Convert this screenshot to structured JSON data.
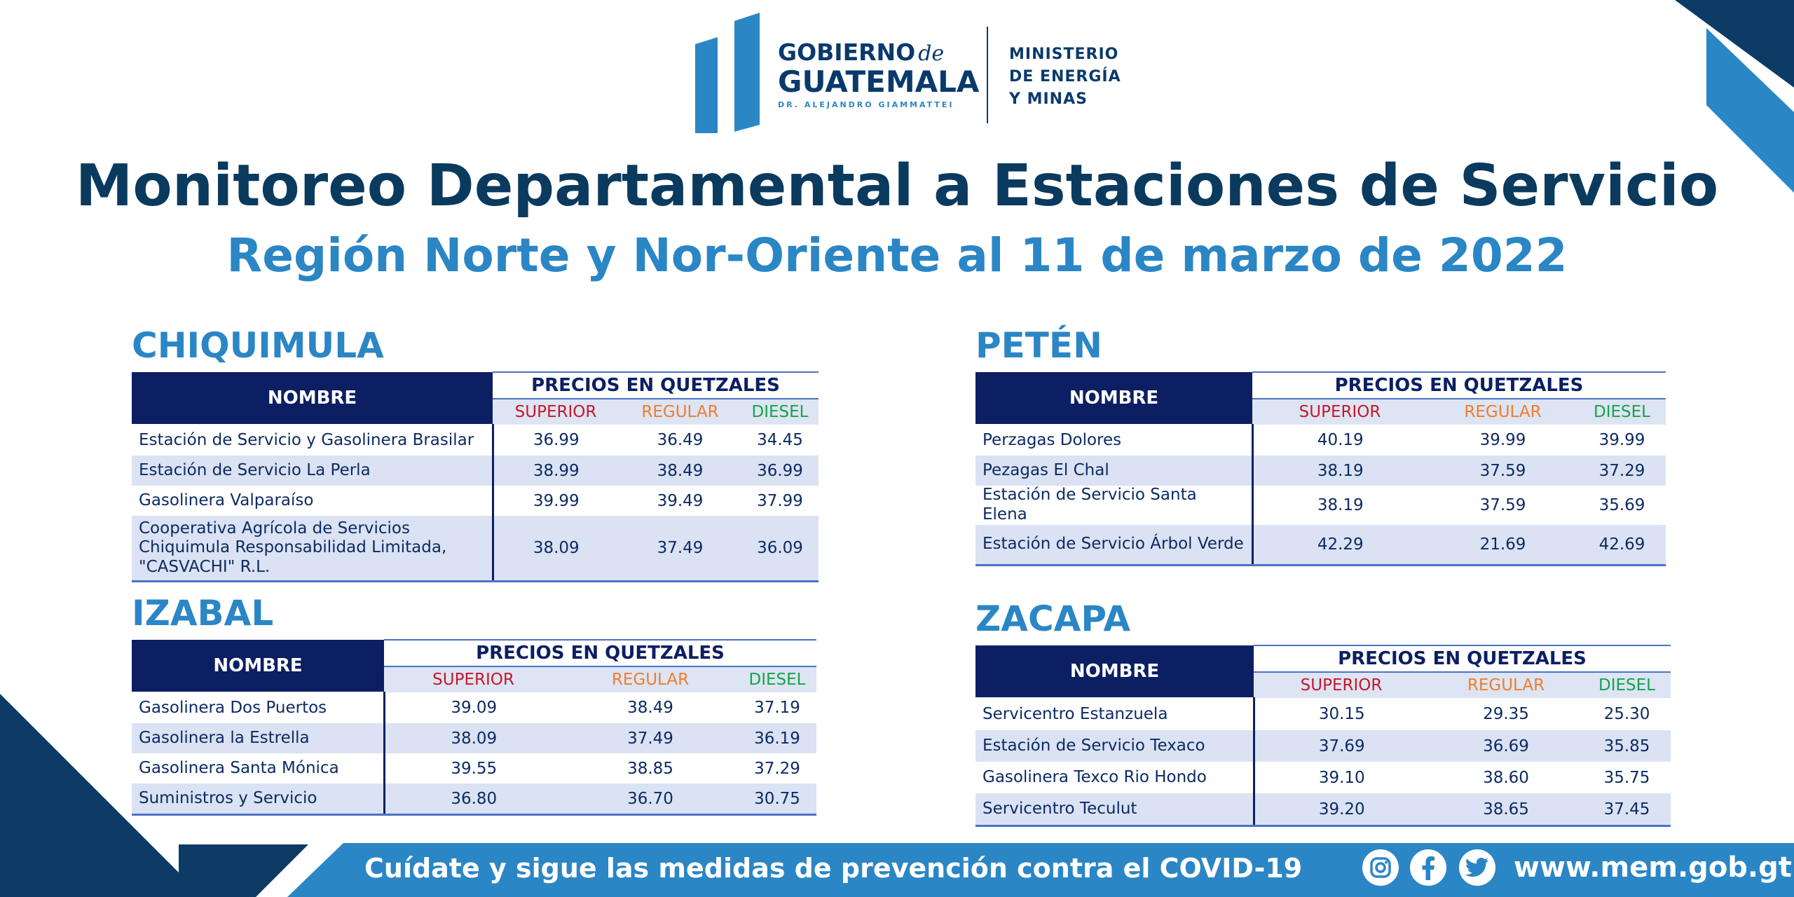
{
  "header": {
    "logo_line1": "GOBIERNO",
    "logo_de": "de",
    "logo_line2": "GUATEMALA",
    "logo_line3": "DR. ALEJANDRO GIAMMATTEI",
    "ministry_line1": "MINISTERIO",
    "ministry_line2": "DE ENERGÍA",
    "ministry_line3": "Y MINAS"
  },
  "title": "Monitoreo Departamental a Estaciones de Servicio",
  "subtitle": "Región Norte y Nor-Oriente al 11 de marzo de 2022",
  "table_labels": {
    "name": "NOMBRE",
    "group": "PRECIOS EN QUETZALES",
    "superior": "SUPERIOR",
    "regular": "REGULAR",
    "diesel": "DIESEL"
  },
  "colors": {
    "navy": "#0c1f63",
    "brand_blue": "#2b86c5",
    "title_dark": "#0a3a5e",
    "superior": "#c4192c",
    "regular": "#ef7d2e",
    "diesel": "#17a34a",
    "row_alt": "#dae2f3"
  },
  "sections": {
    "chiquimula": {
      "title": "CHIQUIMULA",
      "rows": [
        {
          "name": "Estación de Servicio y Gasolinera Brasilar",
          "superior": "36.99",
          "regular": "36.49",
          "diesel": "34.45"
        },
        {
          "name": "Estación de Servicio La Perla",
          "superior": "38.99",
          "regular": "38.49",
          "diesel": "36.99"
        },
        {
          "name": "Gasolinera Valparaíso",
          "superior": "39.99",
          "regular": "39.49",
          "diesel": "37.99"
        },
        {
          "name": "Cooperativa Agrícola de Servicios Chiquimula Responsabilidad Limitada, \"CASVACHI\" R.L.",
          "superior": "38.09",
          "regular": "37.49",
          "diesel": "36.09"
        }
      ]
    },
    "izabal": {
      "title": "IZABAL",
      "rows": [
        {
          "name": "Gasolinera Dos Puertos",
          "superior": "39.09",
          "regular": "38.49",
          "diesel": "37.19"
        },
        {
          "name": "Gasolinera la Estrella",
          "superior": "38.09",
          "regular": "37.49",
          "diesel": "36.19"
        },
        {
          "name": "Gasolinera Santa Mónica",
          "superior": "39.55",
          "regular": "38.85",
          "diesel": "37.29"
        },
        {
          "name": "Suministros y Servicio",
          "superior": "36.80",
          "regular": "36.70",
          "diesel": "30.75"
        }
      ]
    },
    "peten": {
      "title": "PETÉN",
      "rows": [
        {
          "name": "Perzagas Dolores",
          "superior": "40.19",
          "regular": "39.99",
          "diesel": "39.99"
        },
        {
          "name": "Pezagas El Chal",
          "superior": "38.19",
          "regular": "37.59",
          "diesel": "37.29"
        },
        {
          "name": "Estación de Servicio Santa Elena",
          "superior": "38.19",
          "regular": "37.59",
          "diesel": "35.69"
        },
        {
          "name": "Estación de Servicio Árbol Verde",
          "superior": "42.29",
          "regular": "21.69",
          "diesel": "42.69"
        }
      ]
    },
    "zacapa": {
      "title": "ZACAPA",
      "rows": [
        {
          "name": "Servicentro Estanzuela",
          "superior": "30.15",
          "regular": "29.35",
          "diesel": "25.30"
        },
        {
          "name": "Estación de Servicio Texaco",
          "superior": "37.69",
          "regular": "36.69",
          "diesel": "35.85"
        },
        {
          "name": "Gasolinera Texco Rio Hondo",
          "superior": "39.10",
          "regular": "38.60",
          "diesel": "35.75"
        },
        {
          "name": "Servicentro Teculut",
          "superior": "39.20",
          "regular": "38.65",
          "diesel": "37.45"
        }
      ]
    }
  },
  "footer": {
    "message": "Cuídate y sigue las medidas de prevención contra el COVID-19",
    "website": "www.mem.gob.gt",
    "icons": [
      "instagram-icon",
      "facebook-icon",
      "twitter-icon"
    ]
  }
}
